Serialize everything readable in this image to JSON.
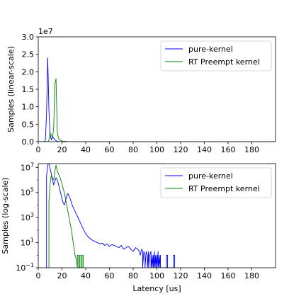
{
  "chart_data": [
    {
      "type": "line",
      "title": "",
      "xlabel": "",
      "ylabel": "Samples (linear-scale)",
      "xlim": [
        0,
        200
      ],
      "ylim": [
        0,
        3.0
      ],
      "y_multiplier_label": "1e7",
      "xticks": [
        0,
        20,
        40,
        60,
        80,
        100,
        120,
        140,
        160,
        180
      ],
      "xtick_labels": [
        "0",
        "20",
        "40",
        "60",
        "80",
        "100",
        "120",
        "140",
        "160",
        "180"
      ],
      "yticks": [
        0.0,
        0.5,
        1.0,
        1.5,
        2.0,
        2.5,
        3.0
      ],
      "ytick_labels": [
        "0.0",
        "0.5",
        "1.0",
        "1.5",
        "2.0",
        "2.5",
        "3.0"
      ],
      "legend_position": "top-right",
      "series": [
        {
          "name": "pure-kernel",
          "color": "#0000ff",
          "x": [
            0,
            5,
            6,
            7,
            8,
            9,
            10,
            11,
            12,
            13,
            14,
            15,
            16,
            18,
            20,
            200
          ],
          "y": [
            0,
            0,
            0.05,
            0.8,
            2.4,
            0.9,
            0.2,
            0.05,
            0.15,
            0.1,
            0.05,
            0.03,
            0.01,
            0,
            0,
            0
          ]
        },
        {
          "name": "RT Preempt kernel",
          "color": "#008000",
          "x": [
            0,
            8,
            9,
            10,
            11,
            12,
            13,
            14,
            15,
            16,
            17,
            18,
            20,
            22,
            25,
            200
          ],
          "y": [
            0,
            0,
            0.05,
            0.25,
            0.2,
            0.1,
            0.4,
            1.65,
            1.8,
            0.3,
            0.1,
            0.05,
            0.02,
            0.01,
            0,
            0
          ]
        }
      ]
    },
    {
      "type": "line",
      "title": "",
      "xlabel": "Latency [us]",
      "ylabel": "Samples (log-scale)",
      "xlim": [
        0,
        200
      ],
      "ylim": [
        0.1,
        20000000
      ],
      "y_scale": "log",
      "xticks": [
        0,
        20,
        40,
        60,
        80,
        100,
        120,
        140,
        160,
        180
      ],
      "xtick_labels": [
        "0",
        "20",
        "40",
        "60",
        "80",
        "100",
        "120",
        "140",
        "160",
        "180"
      ],
      "yticks": [
        0.1,
        10,
        1000,
        100000,
        10000000
      ],
      "ytick_labels": [
        {
          "base": "10",
          "exp": "−1"
        },
        {
          "base": "10",
          "exp": "1"
        },
        {
          "base": "10",
          "exp": "3"
        },
        {
          "base": "10",
          "exp": "5"
        },
        {
          "base": "10",
          "exp": "7"
        }
      ],
      "legend_position": "top-right",
      "series": [
        {
          "name": "pure-kernel",
          "color": "#0000ff",
          "x": [
            7,
            7,
            8,
            9,
            10,
            11,
            12,
            13,
            14,
            15,
            16,
            17,
            18,
            19,
            20,
            21,
            22,
            23,
            24,
            25,
            26,
            27,
            28,
            29,
            30,
            32,
            34,
            36,
            38,
            40,
            42,
            44,
            46,
            48,
            50,
            52,
            54,
            56,
            58,
            60,
            62,
            64,
            66,
            68,
            70,
            72,
            74,
            76,
            78,
            80,
            82,
            84,
            85,
            86,
            87,
            88,
            88,
            89,
            90,
            90,
            91,
            92,
            92,
            93,
            93,
            94,
            95,
            95,
            96,
            96,
            97,
            97,
            98,
            98,
            99,
            99,
            100,
            100,
            101,
            101,
            102,
            102,
            103,
            103,
            108,
            108,
            109,
            109,
            114,
            114,
            115,
            115
          ],
          "y": [
            0.1,
            2000000,
            15000000,
            24000000,
            8000000,
            3000000,
            1000000,
            400000,
            800000,
            1500000,
            1000000,
            500000,
            200000,
            80000,
            30000,
            15000,
            10000,
            20000,
            60000,
            80000,
            50000,
            30000,
            15000,
            8000,
            5000,
            2000,
            800,
            300,
            120,
            50,
            30,
            20,
            15,
            12,
            10,
            8,
            9,
            6,
            8,
            5,
            7,
            6,
            5,
            4,
            6,
            3,
            4,
            5,
            3,
            2,
            4,
            3,
            2,
            1,
            3,
            2,
            0.1,
            2,
            1,
            0.1,
            2,
            1,
            0.1,
            2,
            0.1,
            1,
            2,
            0.1,
            1,
            0.1,
            1,
            0.1,
            2,
            0.1,
            1,
            0.1,
            1,
            0.1,
            2,
            0.1,
            1,
            0.1,
            1,
            0.1,
            0.1,
            1,
            1,
            0.1,
            0.1,
            1,
            1,
            0.1
          ]
        },
        {
          "name": "RT Preempt kernel",
          "color": "#008000",
          "x": [
            9,
            9,
            10,
            11,
            12,
            13,
            14,
            15,
            16,
            17,
            18,
            19,
            20,
            21,
            22,
            23,
            24,
            25,
            26,
            27,
            28,
            29,
            30,
            31,
            32,
            33,
            33,
            34,
            34,
            35,
            35,
            36,
            36,
            37,
            37,
            38,
            38
          ],
          "y": [
            0.1,
            20000,
            500000,
            2500000,
            1500000,
            1000000,
            5000000,
            15000000,
            5000000,
            3000000,
            2000000,
            1000000,
            500000,
            200000,
            100000,
            30000,
            10000,
            3000,
            1000,
            300,
            100,
            20,
            5,
            1,
            0.5,
            0.1,
            1,
            1,
            0.1,
            0.1,
            1,
            1,
            0.1,
            0.1,
            1,
            1,
            0.1
          ]
        }
      ]
    }
  ]
}
